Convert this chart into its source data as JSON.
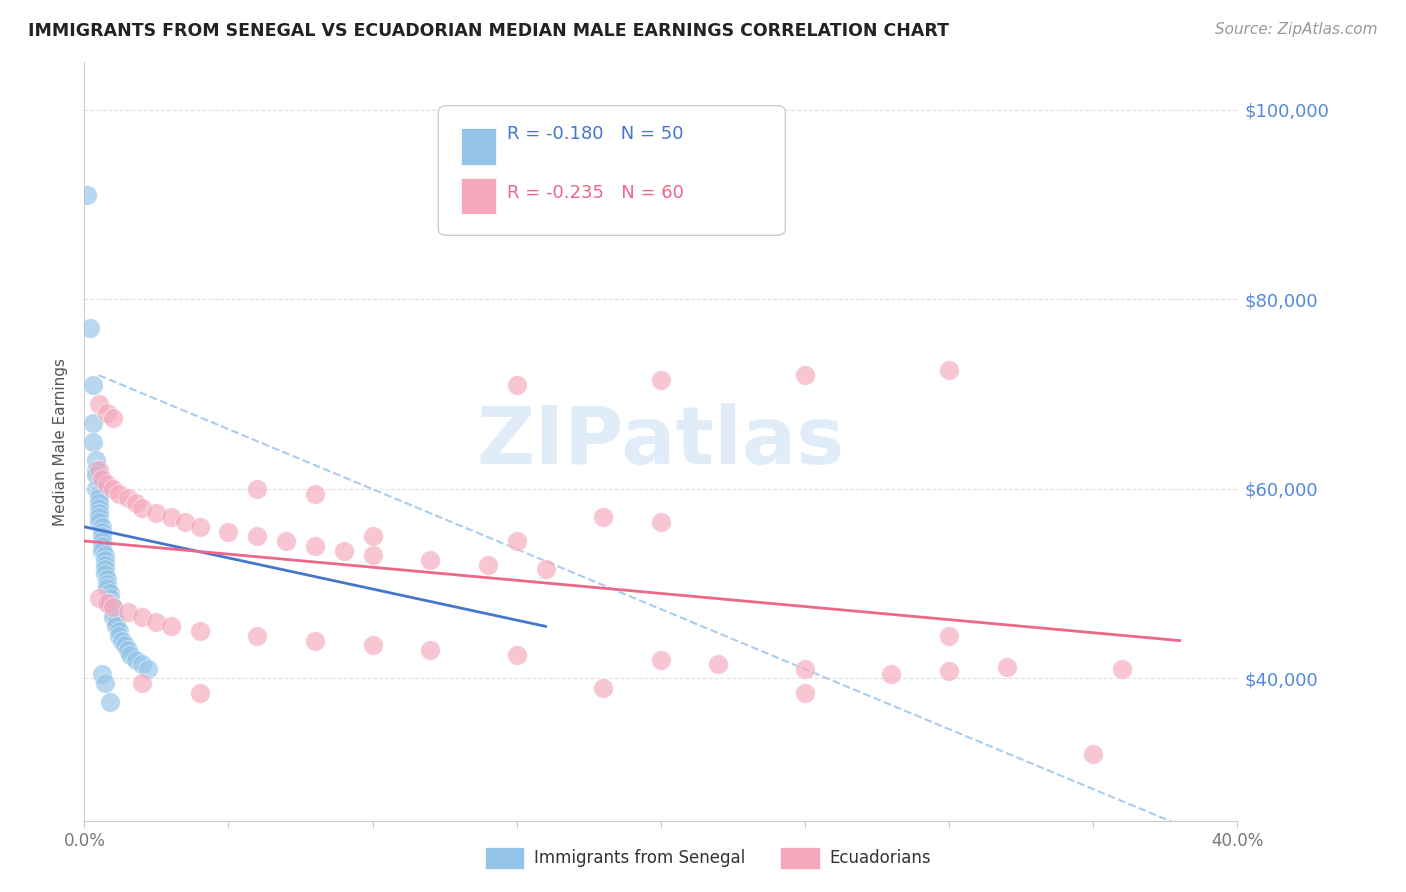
{
  "title": "IMMIGRANTS FROM SENEGAL VS ECUADORIAN MEDIAN MALE EARNINGS CORRELATION CHART",
  "source": "Source: ZipAtlas.com",
  "ylabel": "Median Male Earnings",
  "yticks": [
    40000,
    60000,
    80000,
    100000
  ],
  "ytick_labels": [
    "$40,000",
    "$60,000",
    "$80,000",
    "$100,000"
  ],
  "xmin": 0.0,
  "xmax": 0.4,
  "ymin": 25000,
  "ymax": 105000,
  "blue_R": "-0.180",
  "blue_N": "50",
  "pink_R": "-0.235",
  "pink_N": "60",
  "blue_color": "#94C4E8",
  "pink_color": "#F5A8BC",
  "blue_line_color": "#4477CC",
  "pink_line_color": "#EE6688",
  "dashed_line_color": "#AACCEE",
  "watermark": "ZIPatlas",
  "background": "#FFFFFF",
  "blue_points": [
    [
      0.001,
      91000
    ],
    [
      0.002,
      77000
    ],
    [
      0.003,
      71000
    ],
    [
      0.003,
      67000
    ],
    [
      0.003,
      65000
    ],
    [
      0.004,
      63000
    ],
    [
      0.004,
      62000
    ],
    [
      0.004,
      61500
    ],
    [
      0.004,
      60000
    ],
    [
      0.005,
      59500
    ],
    [
      0.005,
      59000
    ],
    [
      0.005,
      58500
    ],
    [
      0.005,
      58000
    ],
    [
      0.005,
      57500
    ],
    [
      0.005,
      57000
    ],
    [
      0.005,
      56500
    ],
    [
      0.006,
      56000
    ],
    [
      0.006,
      55500
    ],
    [
      0.006,
      55000
    ],
    [
      0.006,
      54500
    ],
    [
      0.006,
      54000
    ],
    [
      0.006,
      53500
    ],
    [
      0.007,
      53000
    ],
    [
      0.007,
      52500
    ],
    [
      0.007,
      52000
    ],
    [
      0.007,
      51500
    ],
    [
      0.007,
      51000
    ],
    [
      0.008,
      50500
    ],
    [
      0.008,
      50000
    ],
    [
      0.008,
      49500
    ],
    [
      0.009,
      49000
    ],
    [
      0.009,
      48500
    ],
    [
      0.009,
      48000
    ],
    [
      0.01,
      47500
    ],
    [
      0.01,
      47000
    ],
    [
      0.01,
      46500
    ],
    [
      0.011,
      46000
    ],
    [
      0.011,
      45500
    ],
    [
      0.012,
      45000
    ],
    [
      0.012,
      44500
    ],
    [
      0.013,
      44000
    ],
    [
      0.014,
      43500
    ],
    [
      0.015,
      43000
    ],
    [
      0.016,
      42500
    ],
    [
      0.018,
      42000
    ],
    [
      0.02,
      41500
    ],
    [
      0.022,
      41000
    ],
    [
      0.006,
      40500
    ],
    [
      0.007,
      39500
    ],
    [
      0.009,
      37500
    ]
  ],
  "pink_points": [
    [
      0.005,
      69000
    ],
    [
      0.008,
      68000
    ],
    [
      0.01,
      67500
    ],
    [
      0.005,
      62000
    ],
    [
      0.006,
      61000
    ],
    [
      0.008,
      60500
    ],
    [
      0.01,
      60000
    ],
    [
      0.012,
      59500
    ],
    [
      0.015,
      59000
    ],
    [
      0.018,
      58500
    ],
    [
      0.02,
      58000
    ],
    [
      0.025,
      57500
    ],
    [
      0.03,
      57000
    ],
    [
      0.035,
      56500
    ],
    [
      0.04,
      56000
    ],
    [
      0.05,
      55500
    ],
    [
      0.06,
      55000
    ],
    [
      0.07,
      54500
    ],
    [
      0.08,
      54000
    ],
    [
      0.09,
      53500
    ],
    [
      0.1,
      53000
    ],
    [
      0.12,
      52500
    ],
    [
      0.14,
      52000
    ],
    [
      0.16,
      51500
    ],
    [
      0.18,
      57000
    ],
    [
      0.2,
      56500
    ],
    [
      0.005,
      48500
    ],
    [
      0.008,
      48000
    ],
    [
      0.01,
      47500
    ],
    [
      0.015,
      47000
    ],
    [
      0.02,
      46500
    ],
    [
      0.025,
      46000
    ],
    [
      0.03,
      45500
    ],
    [
      0.04,
      45000
    ],
    [
      0.06,
      44500
    ],
    [
      0.08,
      44000
    ],
    [
      0.1,
      43500
    ],
    [
      0.12,
      43000
    ],
    [
      0.15,
      42500
    ],
    [
      0.2,
      42000
    ],
    [
      0.22,
      41500
    ],
    [
      0.25,
      41000
    ],
    [
      0.28,
      40500
    ],
    [
      0.3,
      40800
    ],
    [
      0.32,
      41200
    ],
    [
      0.15,
      71000
    ],
    [
      0.2,
      71500
    ],
    [
      0.25,
      72000
    ],
    [
      0.3,
      72500
    ],
    [
      0.02,
      39500
    ],
    [
      0.04,
      38500
    ],
    [
      0.1,
      55000
    ],
    [
      0.15,
      54500
    ],
    [
      0.06,
      60000
    ],
    [
      0.08,
      59500
    ],
    [
      0.35,
      32000
    ],
    [
      0.3,
      44500
    ],
    [
      0.25,
      38500
    ],
    [
      0.18,
      39000
    ],
    [
      0.36,
      41000
    ]
  ],
  "blue_trendline": [
    [
      0.0,
      56000
    ],
    [
      0.16,
      45500
    ]
  ],
  "pink_trendline": [
    [
      0.0,
      54500
    ],
    [
      0.38,
      44000
    ]
  ],
  "dashed_line": [
    [
      0.005,
      72000
    ],
    [
      0.4,
      22000
    ]
  ]
}
